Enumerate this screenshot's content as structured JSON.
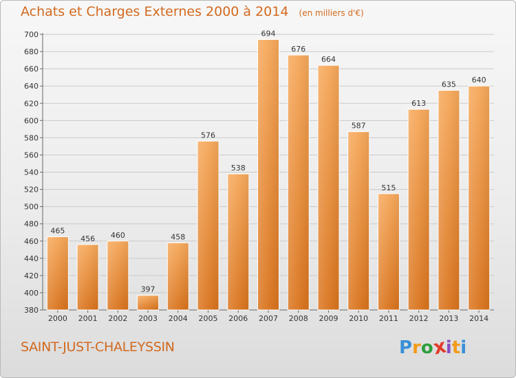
{
  "header": {
    "title": "Achats et Charges Externes 2000 à 2014",
    "subtitle": "(en milliers d'€)"
  },
  "footer": {
    "commune": "SAINT-JUST-CHALEYSSIN",
    "logo_text": "Proxiti"
  },
  "colors": {
    "title": "#d2691e",
    "bar_top": "#f6a85a",
    "bar_bottom": "#d9731c",
    "logo": [
      "#3a8fd8",
      "#f29a1a",
      "#2e9e3e",
      "#e23c2b",
      "#8a4fbf",
      "#f29a1a",
      "#3a8fd8"
    ]
  },
  "chart_data": {
    "type": "bar",
    "categories": [
      "2000",
      "2001",
      "2002",
      "2003",
      "2004",
      "2005",
      "2006",
      "2007",
      "2008",
      "2009",
      "2010",
      "2011",
      "2012",
      "2013",
      "2014"
    ],
    "values": [
      465,
      456,
      460,
      397,
      458,
      576,
      538,
      694,
      676,
      664,
      587,
      515,
      613,
      635,
      640
    ],
    "title": "Achats et Charges Externes 2000 à 2014",
    "xlabel": "",
    "ylabel": "",
    "ylim": [
      380,
      700
    ],
    "yticks": [
      380,
      400,
      420,
      440,
      460,
      480,
      500,
      520,
      540,
      560,
      580,
      600,
      620,
      640,
      660,
      680,
      700
    ],
    "grid": true
  }
}
